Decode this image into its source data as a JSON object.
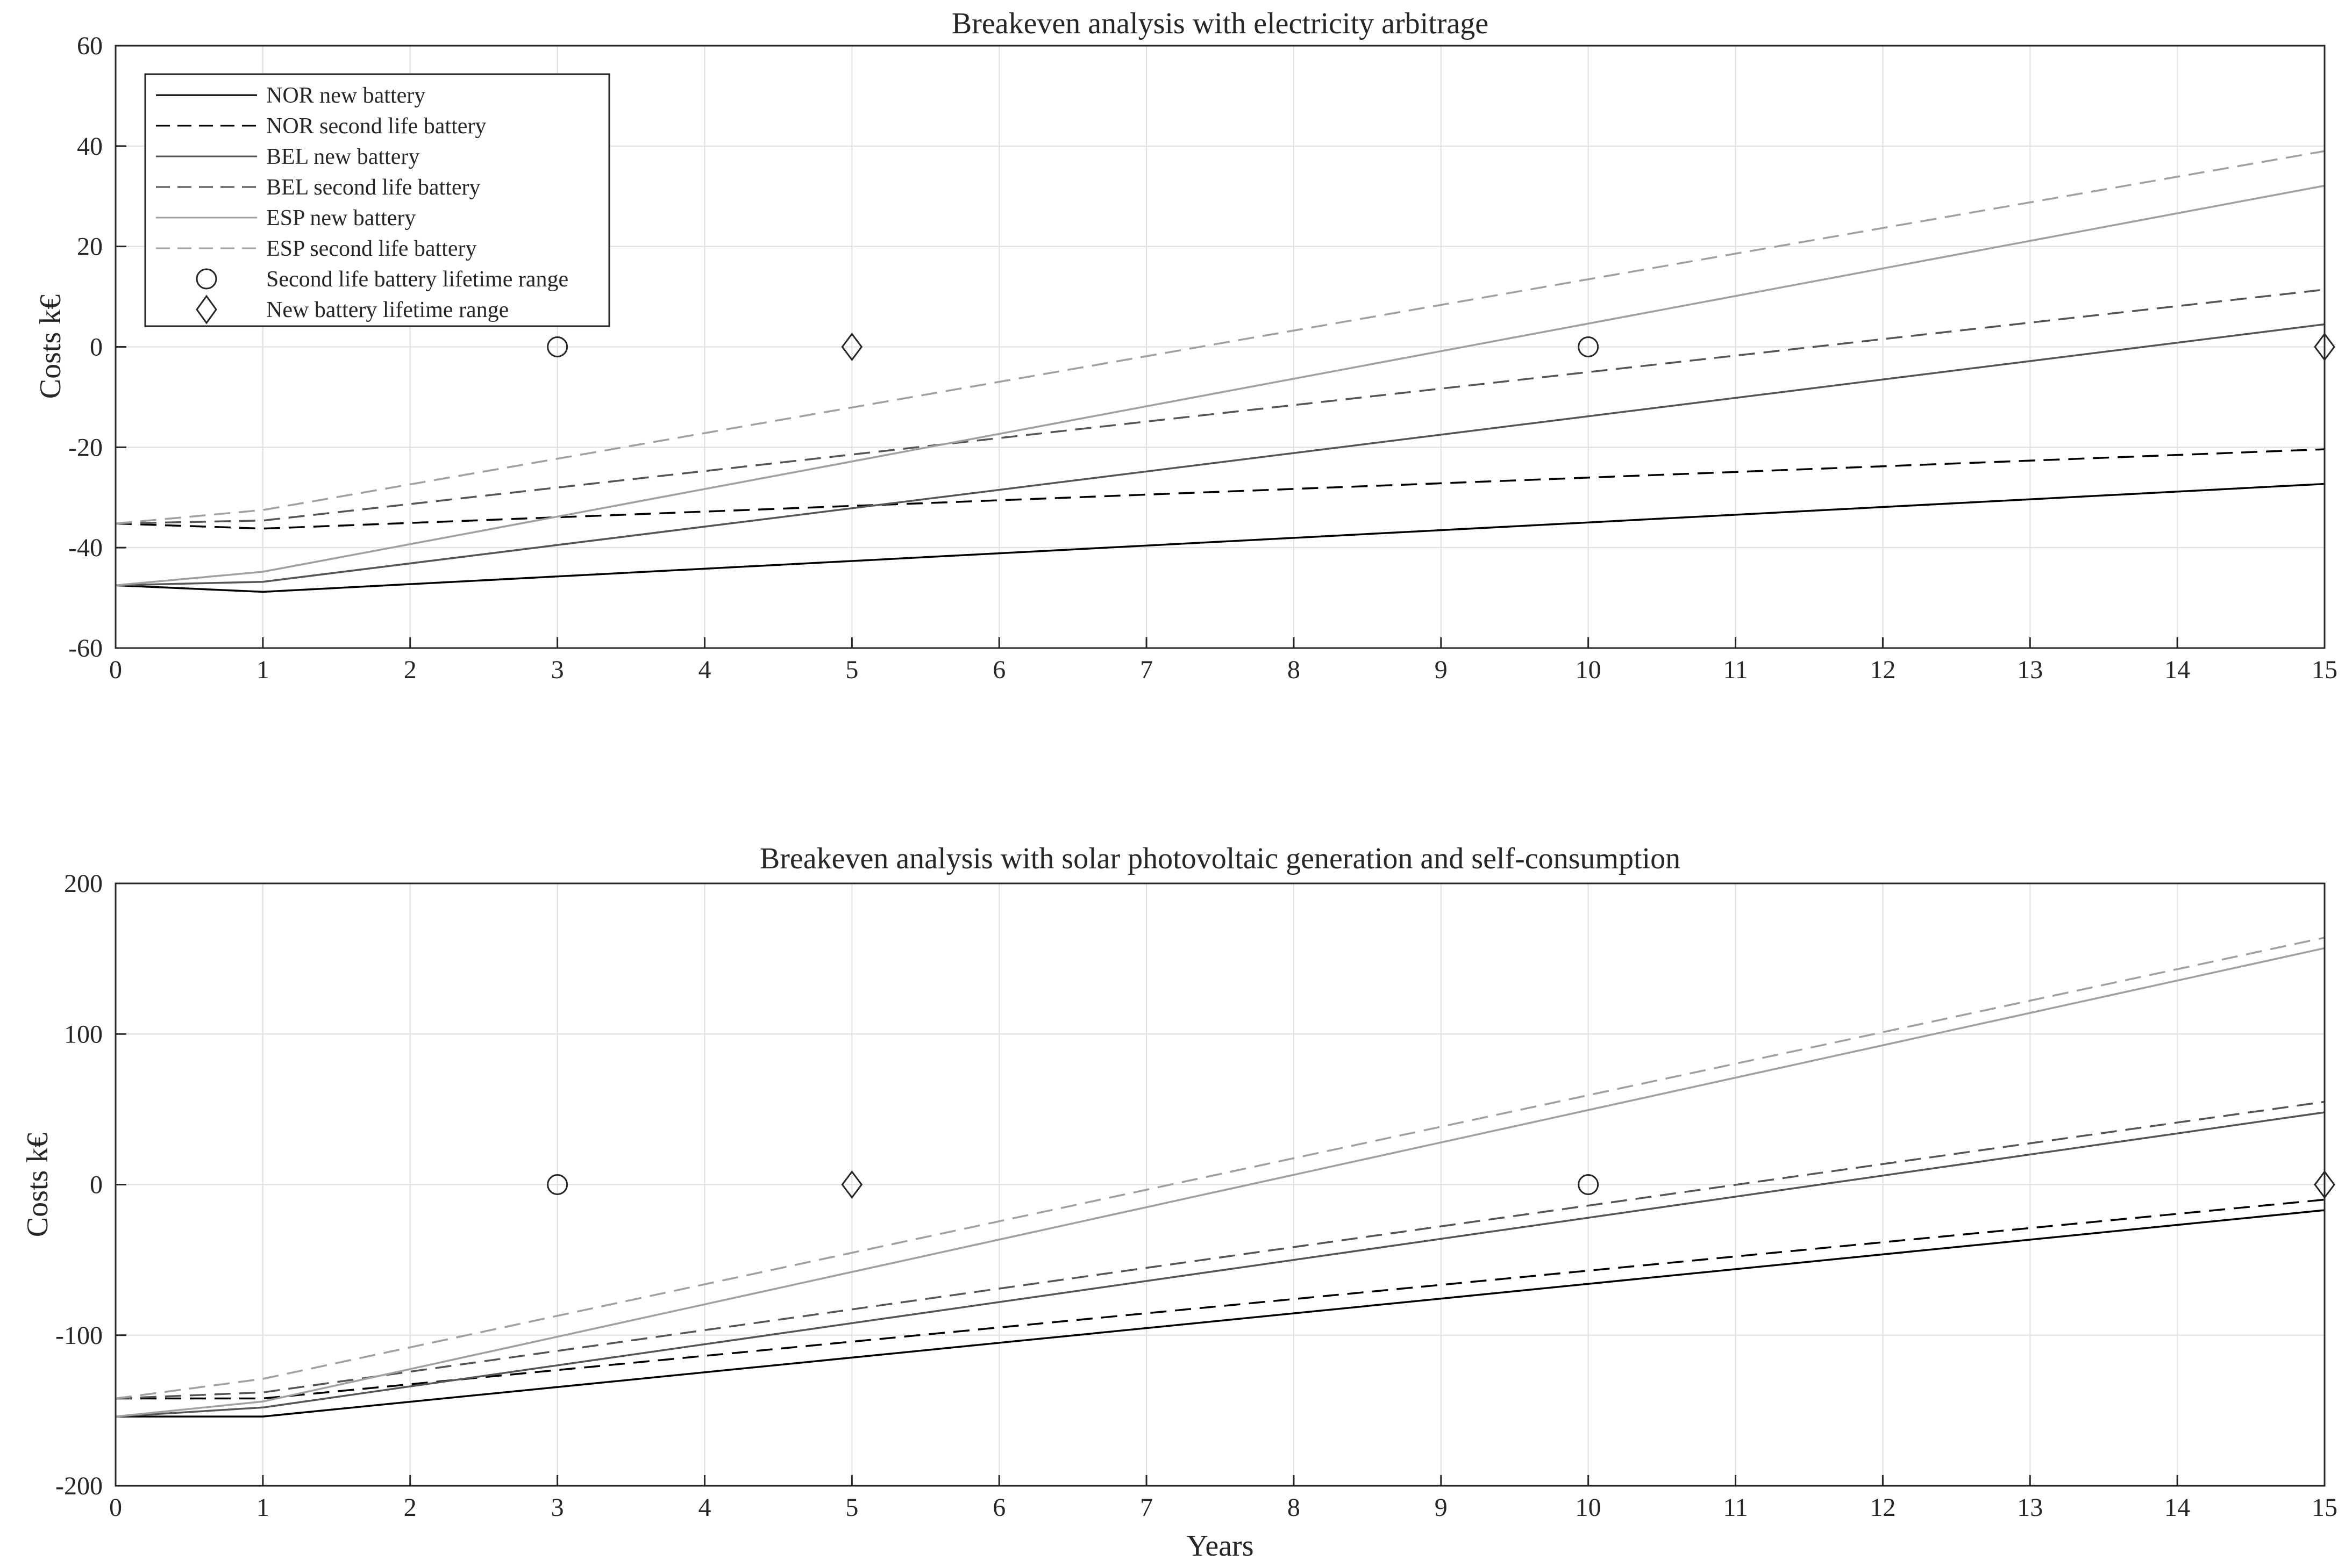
{
  "chart_data": [
    {
      "type": "line",
      "title": "Breakeven analysis with electricity arbitrage",
      "xlabel": "",
      "ylabel": "Costs k€",
      "xlim": [
        0,
        15
      ],
      "ylim": [
        -60,
        60
      ],
      "xticks": [
        "0",
        "1",
        "2",
        "3",
        "4",
        "5",
        "6",
        "7",
        "8",
        "9",
        "10",
        "11",
        "12",
        "13",
        "14",
        "15"
      ],
      "yticks": [
        "-60",
        "-40",
        "-20",
        "0",
        "20",
        "40",
        "60"
      ],
      "grid": true,
      "legend_position": "top-left",
      "x": [
        0,
        1,
        15
      ],
      "series": [
        {
          "name": "NOR new battery",
          "color": "#000000",
          "dash": "solid",
          "values": [
            -47.5,
            -48.8,
            -27.3
          ]
        },
        {
          "name": "NOR second life battery",
          "color": "#000000",
          "dash": "dashed",
          "values": [
            -35.2,
            -36.2,
            -20.4
          ]
        },
        {
          "name": "BEL new battery",
          "color": "#555555",
          "dash": "solid",
          "values": [
            -47.5,
            -46.8,
            4.5
          ]
        },
        {
          "name": "BEL second life battery",
          "color": "#555555",
          "dash": "dashed",
          "values": [
            -35.2,
            -34.6,
            11.4
          ]
        },
        {
          "name": "ESP new battery",
          "color": "#a0a0a0",
          "dash": "solid",
          "values": [
            -47.5,
            -44.8,
            32.1
          ]
        },
        {
          "name": "ESP second life battery",
          "color": "#a0a0a0",
          "dash": "dashed",
          "values": [
            -35.2,
            -32.5,
            39.0
          ]
        }
      ],
      "markers": [
        {
          "name": "Second life battery lifetime range",
          "shape": "circle",
          "points": [
            [
              3,
              0
            ],
            [
              10,
              0
            ]
          ]
        },
        {
          "name": "New battery lifetime range",
          "shape": "diamond",
          "points": [
            [
              5,
              0
            ],
            [
              15,
              0
            ]
          ]
        }
      ]
    },
    {
      "type": "line",
      "title": "Breakeven analysis with solar photovoltaic generation and self-consumption",
      "xlabel": "Years",
      "ylabel": "Costs k€",
      "xlim": [
        0,
        15
      ],
      "ylim": [
        -200,
        200
      ],
      "xticks": [
        "0",
        "1",
        "2",
        "3",
        "4",
        "5",
        "6",
        "7",
        "8",
        "9",
        "10",
        "11",
        "12",
        "13",
        "14",
        "15"
      ],
      "yticks": [
        "-200",
        "-100",
        "0",
        "100",
        "200"
      ],
      "grid": true,
      "x": [
        0,
        1,
        15
      ],
      "series": [
        {
          "name": "NOR new battery",
          "color": "#000000",
          "dash": "solid",
          "values": [
            -154,
            -154,
            -17
          ]
        },
        {
          "name": "NOR second life battery",
          "color": "#000000",
          "dash": "dashed",
          "values": [
            -142,
            -142,
            -10
          ]
        },
        {
          "name": "BEL new battery",
          "color": "#555555",
          "dash": "solid",
          "values": [
            -154,
            -148,
            48
          ]
        },
        {
          "name": "BEL second life battery",
          "color": "#555555",
          "dash": "dashed",
          "values": [
            -142,
            -138,
            55
          ]
        },
        {
          "name": "ESP new battery",
          "color": "#a0a0a0",
          "dash": "solid",
          "values": [
            -154,
            -144,
            157
          ]
        },
        {
          "name": "ESP second life battery",
          "color": "#a0a0a0",
          "dash": "dashed",
          "values": [
            -142,
            -129,
            164
          ]
        }
      ],
      "markers": [
        {
          "name": "Second life battery lifetime range",
          "shape": "circle",
          "points": [
            [
              3,
              0
            ],
            [
              10,
              0
            ]
          ]
        },
        {
          "name": "New battery lifetime range",
          "shape": "diamond",
          "points": [
            [
              5,
              0
            ],
            [
              15,
              0
            ]
          ]
        }
      ]
    }
  ]
}
